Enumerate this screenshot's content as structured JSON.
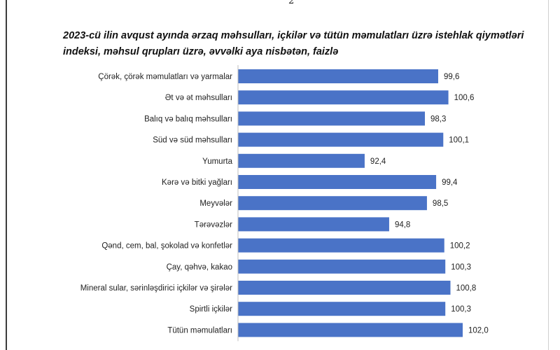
{
  "page": {
    "number": "2"
  },
  "chart_data": {
    "type": "bar",
    "orientation": "horizontal",
    "title": "2023-cü ilin avqust ayında ərzaq məhsulları, içkilər və tütün məmulatları üzrə istehlak qiymətləri indeksi, məhsul qrupları üzrə, əvvəlki aya nisbətən, faizlə",
    "categories": [
      "Çörək, çörək məmulatları və yarmalar",
      "Ət və ət məhsulları",
      "Balıq və balıq məhsulları",
      "Süd və süd məhsulları",
      "Yumurta",
      "Kərə və bitki yağları",
      "Meyvələr",
      "Tərəvəzlər",
      "Qənd, cem, bal, şokolad və konfetlər",
      "Çay, qəhvə, kakao",
      "Mineral sular, sərinləşdirici içkilər və şirələr",
      "Spirtli içkilər",
      "Tütün məmulatları"
    ],
    "values": [
      99.6,
      100.6,
      98.3,
      100.1,
      92.4,
      99.4,
      98.5,
      94.8,
      100.2,
      100.3,
      100.8,
      100.3,
      102.0
    ],
    "value_labels": [
      "99,6",
      "100,6",
      "98,3",
      "100,1",
      "92,4",
      "99,4",
      "98,5",
      "94,8",
      "100,2",
      "100,3",
      "100,8",
      "100,3",
      "102,0"
    ],
    "xlim": [
      80,
      102.0
    ],
    "bar_color": "#4a73c7",
    "grid": false,
    "legend": "none"
  }
}
